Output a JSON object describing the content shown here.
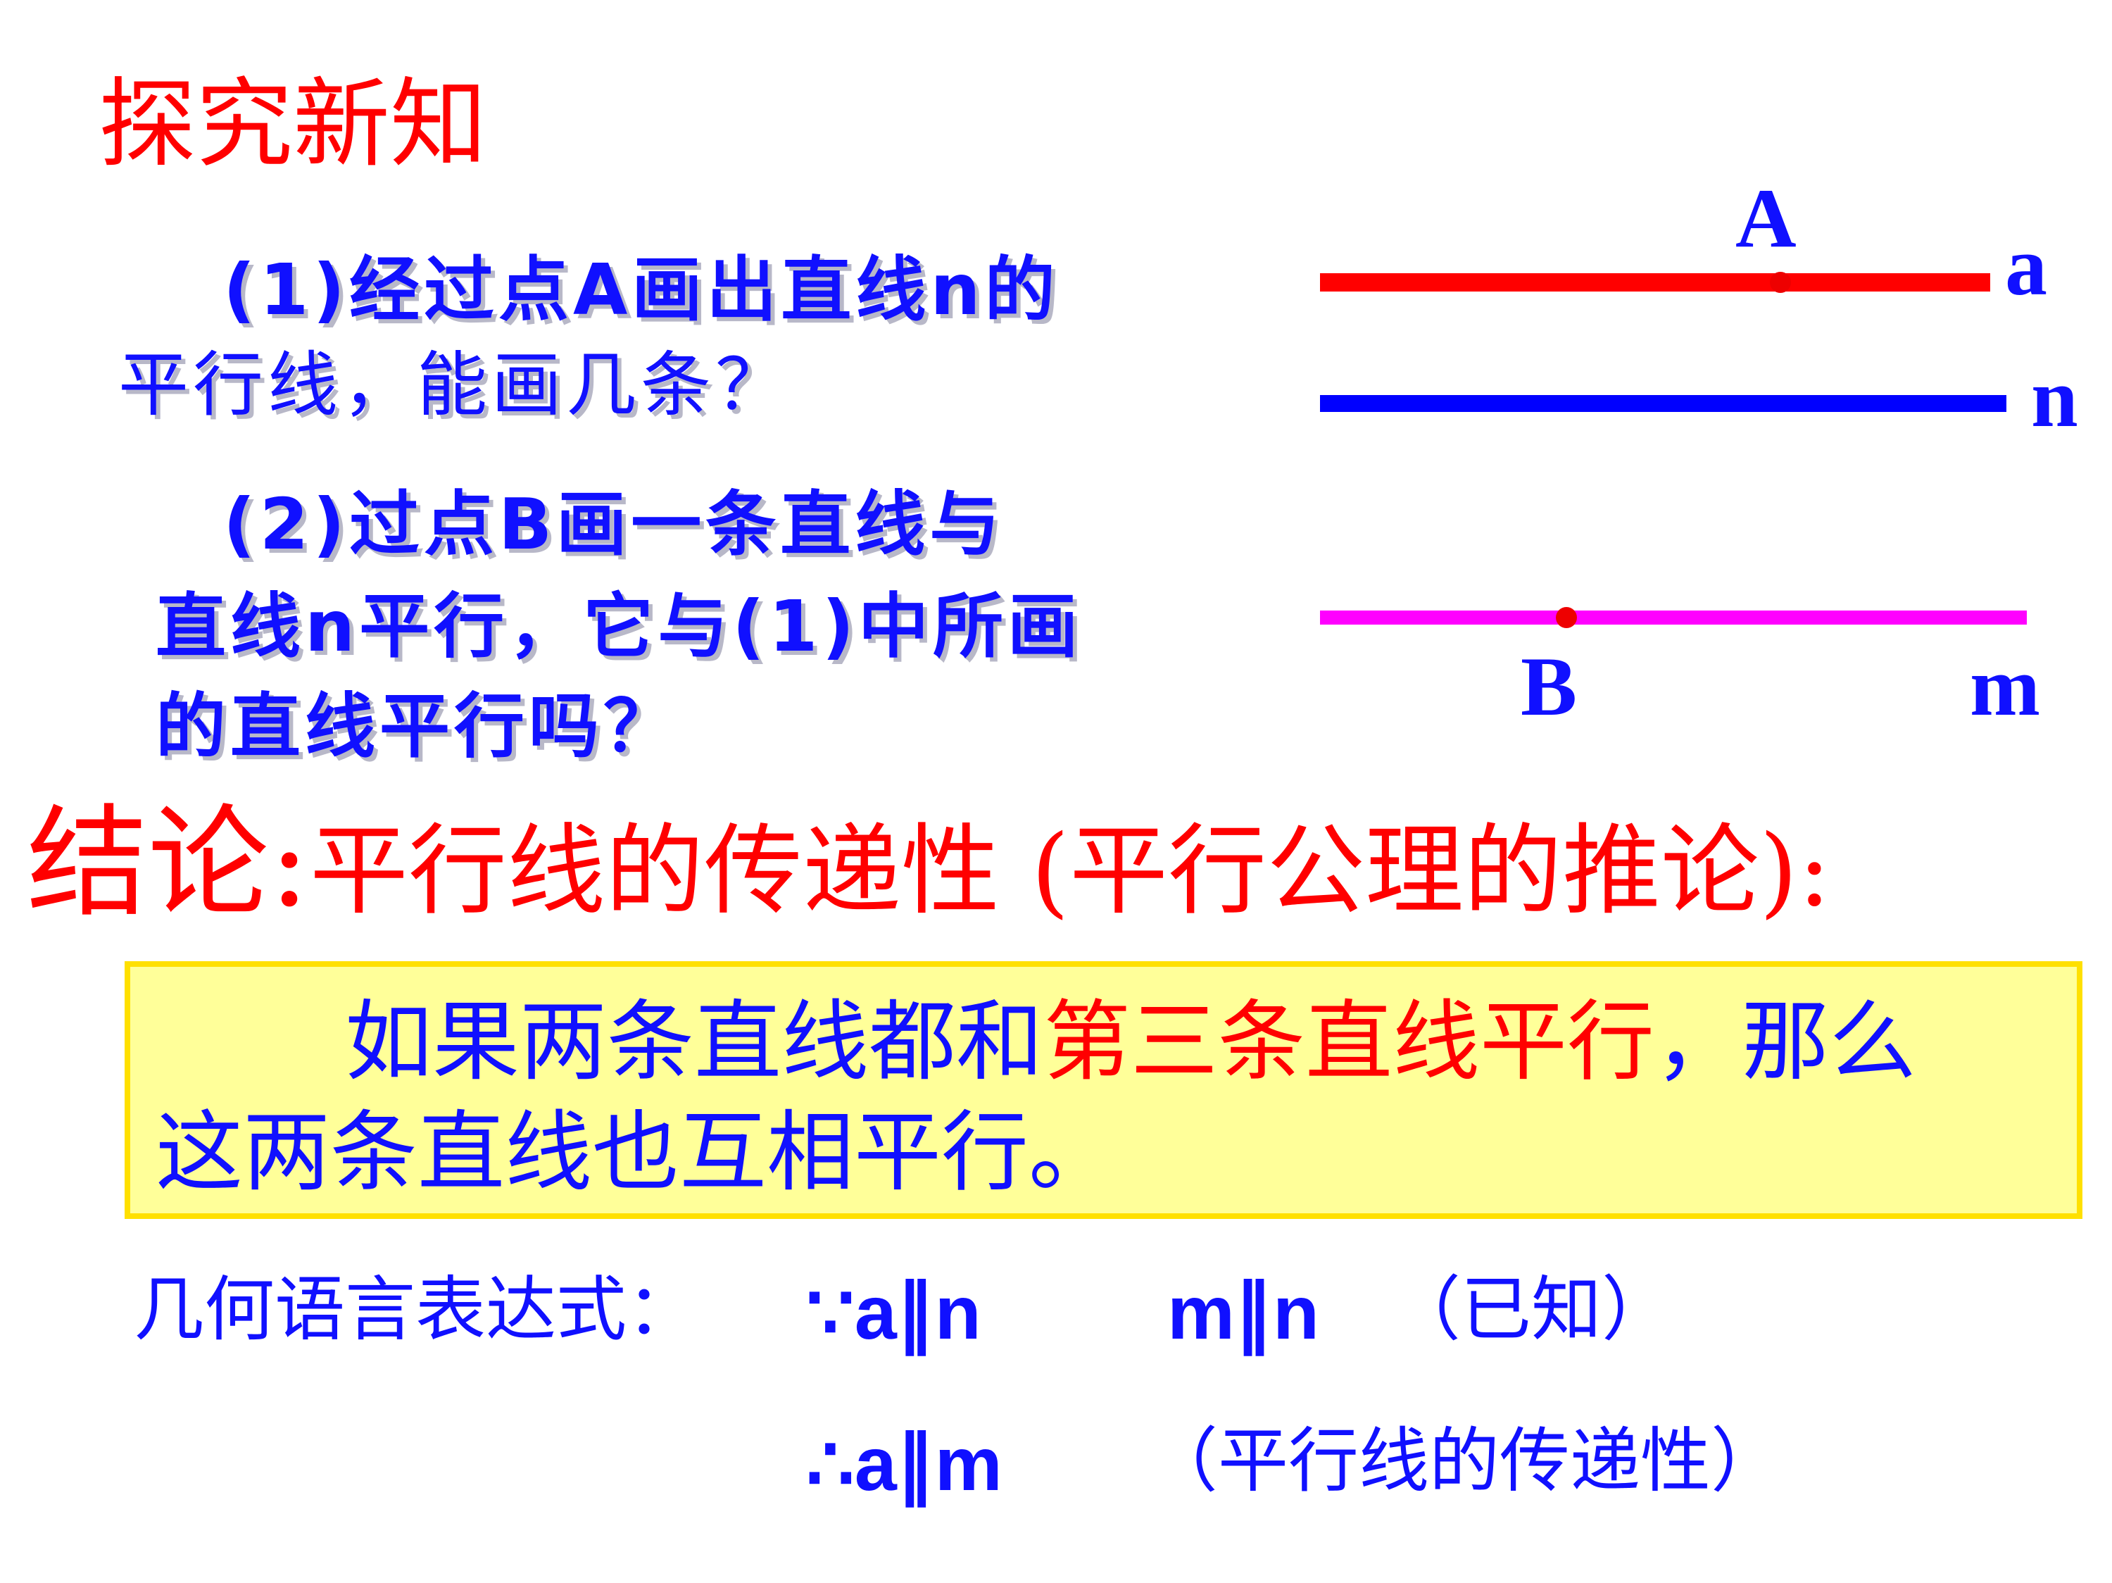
{
  "title": "探究新知",
  "questions": {
    "q1_line1": "(1)经过点A画出直线n的",
    "q1_line2": "平行线，能画几条？",
    "q2_line1": "(2)过点B画一条直线与",
    "q2_line2": "直线n平行，它与(1)中所画",
    "q2_line3": "的直线平行吗？"
  },
  "figure": {
    "lines": [
      {
        "name": "a",
        "color": "#ff0000"
      },
      {
        "name": "n",
        "color": "#0000ff"
      },
      {
        "name": "m",
        "color": "#ff00ff"
      }
    ],
    "points": [
      {
        "name": "A",
        "on": "a",
        "color": "#e00000"
      },
      {
        "name": "B",
        "on": "m",
        "color": "#e00000"
      }
    ]
  },
  "conclusion": {
    "label": "结论:",
    "text": "平行线的传递性 (平行公理的推论):"
  },
  "theorem": {
    "part1": "如果两条直线都和",
    "highlight": "第三条直线平行",
    "part2": "，那么",
    "line2": "这两条直线也互相平行。"
  },
  "geometry": {
    "label": "几何语言表达式：",
    "given1": "∵a∥n",
    "given2": "m∥n",
    "given_reason": "（已知）",
    "result": "∴a∥m",
    "result_reason": "（平行线的传递性）"
  },
  "colors": {
    "red": "#ff0000",
    "blue": "#1010ff",
    "box_fill": "#ffff99",
    "box_border": "#ffe000"
  }
}
